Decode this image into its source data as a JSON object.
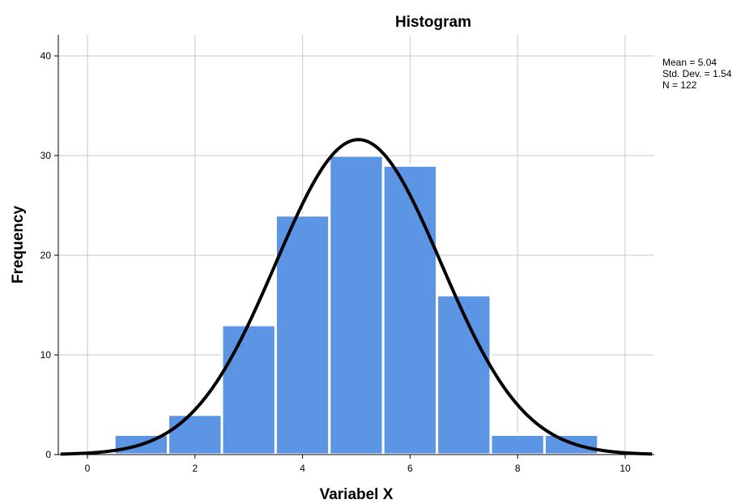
{
  "chart_data": {
    "type": "bar",
    "title": "Histogram",
    "xlabel": "Variabel X",
    "ylabel": "Frequency",
    "xlim": [
      -0.5,
      10.5
    ],
    "ylim": [
      0,
      42
    ],
    "x_ticks": [
      0,
      2,
      4,
      6,
      8,
      10
    ],
    "y_ticks": [
      0,
      10,
      20,
      30,
      40
    ],
    "grid": true,
    "bin_width": 1,
    "bins": [
      {
        "center": 1,
        "value": 2
      },
      {
        "center": 2,
        "value": 4
      },
      {
        "center": 3,
        "value": 13
      },
      {
        "center": 4,
        "value": 24
      },
      {
        "center": 5,
        "value": 30
      },
      {
        "center": 6,
        "value": 29
      },
      {
        "center": 7,
        "value": 16
      },
      {
        "center": 8,
        "value": 2
      },
      {
        "center": 9,
        "value": 2
      }
    ],
    "normal_curve": {
      "mean": 5.04,
      "std": 1.54,
      "n": 122
    },
    "stats": [
      "Mean = 5.04",
      "Std. Dev. = 1.54",
      "N = 122"
    ],
    "colors": {
      "bar": "#5b95e3",
      "bar_edge": "#ffffff",
      "curve": "#000000",
      "grid": "#c8c8c8",
      "axis": "#000000"
    }
  }
}
